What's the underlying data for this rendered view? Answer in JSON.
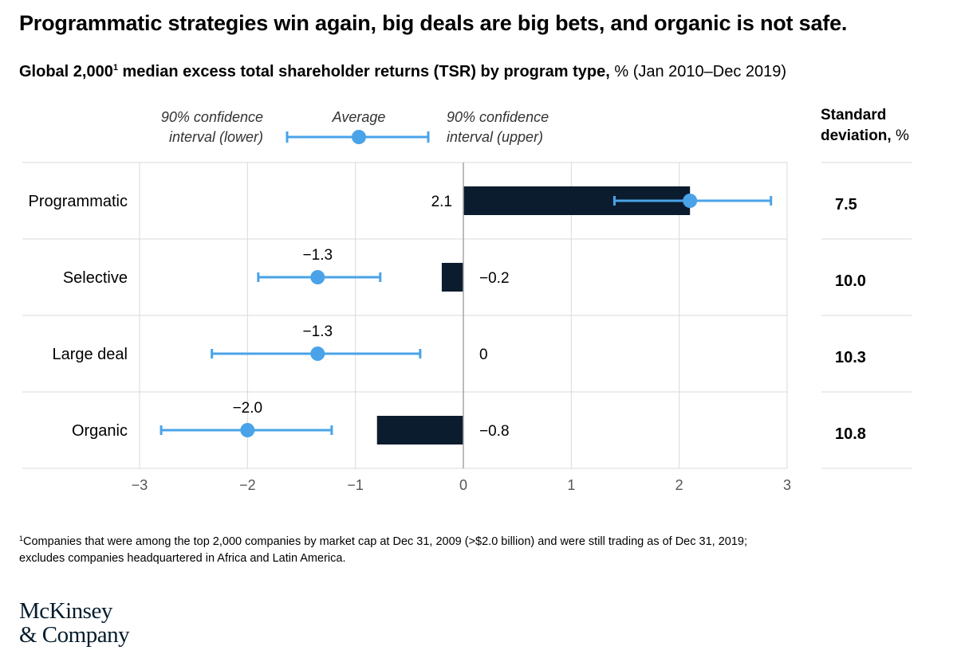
{
  "header": {
    "title": "Programmatic strategies win again, big deals are big bets, and organic is not safe.",
    "subtitle_bold": "Global 2,000",
    "subtitle_sup": "1",
    "subtitle_bold2": " median excess total shareholder returns (TSR) by program type,",
    "subtitle_rest": " % (Jan 2010–Dec 2019)"
  },
  "legend": {
    "lower_line1": "90% confidence",
    "lower_line2": "interval (lower)",
    "average": "Average",
    "upper_line1": "90% confidence",
    "upper_line2": "interval (upper)"
  },
  "sd_header": {
    "line1": "Standard",
    "line2_bold": "deviation,",
    "line2_rest": " %"
  },
  "colors": {
    "bar": "#0b1c2e",
    "dot": "#4aa3e8",
    "grid": "#d9d9d9",
    "axis": "#a6a6a6"
  },
  "chart_data": {
    "type": "bar",
    "categories": [
      "Programmatic",
      "Selective",
      "Large deal",
      "Organic"
    ],
    "series": [
      {
        "name": "Median excess TSR",
        "values": [
          2.1,
          -0.2,
          0,
          -0.8
        ],
        "labels": [
          "2.1",
          "−0.2",
          "0",
          "−0.8"
        ]
      },
      {
        "name": "Average",
        "values": [
          2.1,
          -1.35,
          -1.35,
          -2.0
        ],
        "labels": [
          "",
          "−1.3",
          "−1.3",
          "−2.0"
        ]
      },
      {
        "name": "90% confidence interval (lower)",
        "values": [
          1.4,
          -1.9,
          -2.33,
          -2.8
        ]
      },
      {
        "name": "90% confidence interval (upper)",
        "values": [
          2.85,
          -0.77,
          -0.4,
          -1.22
        ]
      }
    ],
    "standard_deviation": [
      "7.5",
      "10.0",
      "10.3",
      "10.8"
    ],
    "xlim": [
      -3,
      3
    ],
    "xticks": [
      -3,
      -2,
      -1,
      0,
      1,
      2,
      3
    ],
    "xtick_labels": [
      "−3",
      "−2",
      "−1",
      "0",
      "1",
      "2",
      "3"
    ],
    "grid": true
  },
  "footnote": {
    "sup": "1",
    "line1": "Companies that were among the top 2,000 companies by market cap at Dec 31, 2009 (>$2.0 billion) and were still trading as of Dec 31, 2019;",
    "line2": "excludes companies headquartered in Africa and Latin America."
  },
  "logo": {
    "line1": "McKinsey",
    "line2": "& Company"
  }
}
